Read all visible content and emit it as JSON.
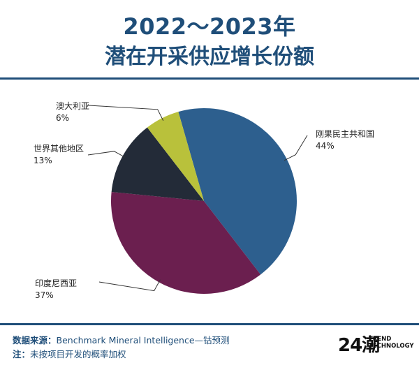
{
  "title": {
    "line1": "2022～2023年",
    "line2": "潜在开采供应增长份额"
  },
  "chart_data": {
    "type": "pie",
    "slices": [
      {
        "label": "刚果民主共和国",
        "value": 44,
        "pct": "44%",
        "color": "#2d5f8e"
      },
      {
        "label": "印度尼西亚",
        "value": 37,
        "pct": "37%",
        "color": "#6b1f4f"
      },
      {
        "label": "世界其他地区",
        "value": 13,
        "pct": "13%",
        "color": "#232b38"
      },
      {
        "label": "澳大利亚",
        "value": 6,
        "pct": "6%",
        "color": "#b9c13b"
      }
    ]
  },
  "footer": {
    "source_label": "数据来源：",
    "source_text": "Benchmark Mineral Intelligence—钴预测",
    "note_label": "注：",
    "note_text": "未按项目开发的概率加权"
  },
  "logo": {
    "mark": "24潮",
    "line1": "TREND",
    "line2": "TECHNOLOGY"
  }
}
